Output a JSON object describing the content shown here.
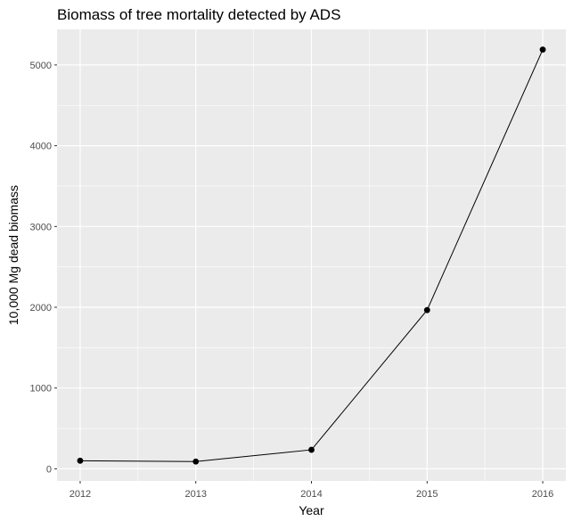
{
  "chart_data": {
    "type": "line",
    "title": "Biomass of tree mortality detected by ADS",
    "xlabel": "Year",
    "ylabel": "10,000 Mg dead biomass",
    "x": [
      "2012",
      "2013",
      "2014",
      "2015",
      "2016"
    ],
    "series": [
      {
        "values": [
          100,
          90,
          235,
          1965,
          5190
        ]
      }
    ],
    "xlim": [
      2011.8,
      2016.2
    ],
    "ylim": [
      -150,
      5440
    ],
    "yticks": [
      0,
      1000,
      2000,
      3000,
      4000,
      5000
    ],
    "ytick_labels": [
      "0",
      "1000",
      "2000",
      "3000",
      "4000",
      "5000"
    ],
    "grid": true,
    "legend": "none",
    "colors": {
      "panel": "#ebebeb",
      "grid": "#ffffff",
      "line": "#000000",
      "point": "#000000"
    }
  }
}
